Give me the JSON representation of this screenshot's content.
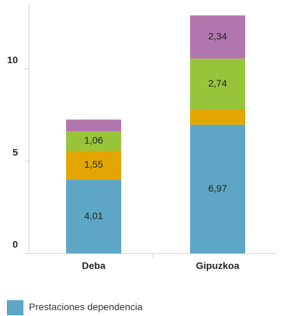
{
  "chart_data": {
    "type": "stacked_bar",
    "categories": [
      "Deba",
      "Gipuzkoa"
    ],
    "series": [
      {
        "name": "Prestaciones dependencia",
        "color": "#5ea6c6",
        "values": [
          4.01,
          6.97
        ],
        "value_labels": [
          "4,01",
          "6,97"
        ]
      },
      {
        "color": "#e3a600",
        "values": [
          1.55,
          0.84
        ],
        "value_labels": [
          "1,55",
          null
        ]
      },
      {
        "color": "#98c43c",
        "values": [
          1.06,
          2.74
        ],
        "value_labels": [
          "1,06",
          "2,74"
        ]
      },
      {
        "color": "#b276ae",
        "values": [
          0.63,
          2.34
        ],
        "value_labels": [
          null,
          "2,34"
        ]
      }
    ],
    "ylim": [
      0,
      13.5
    ],
    "yticks": [
      0,
      5,
      10
    ],
    "grid": false
  }
}
